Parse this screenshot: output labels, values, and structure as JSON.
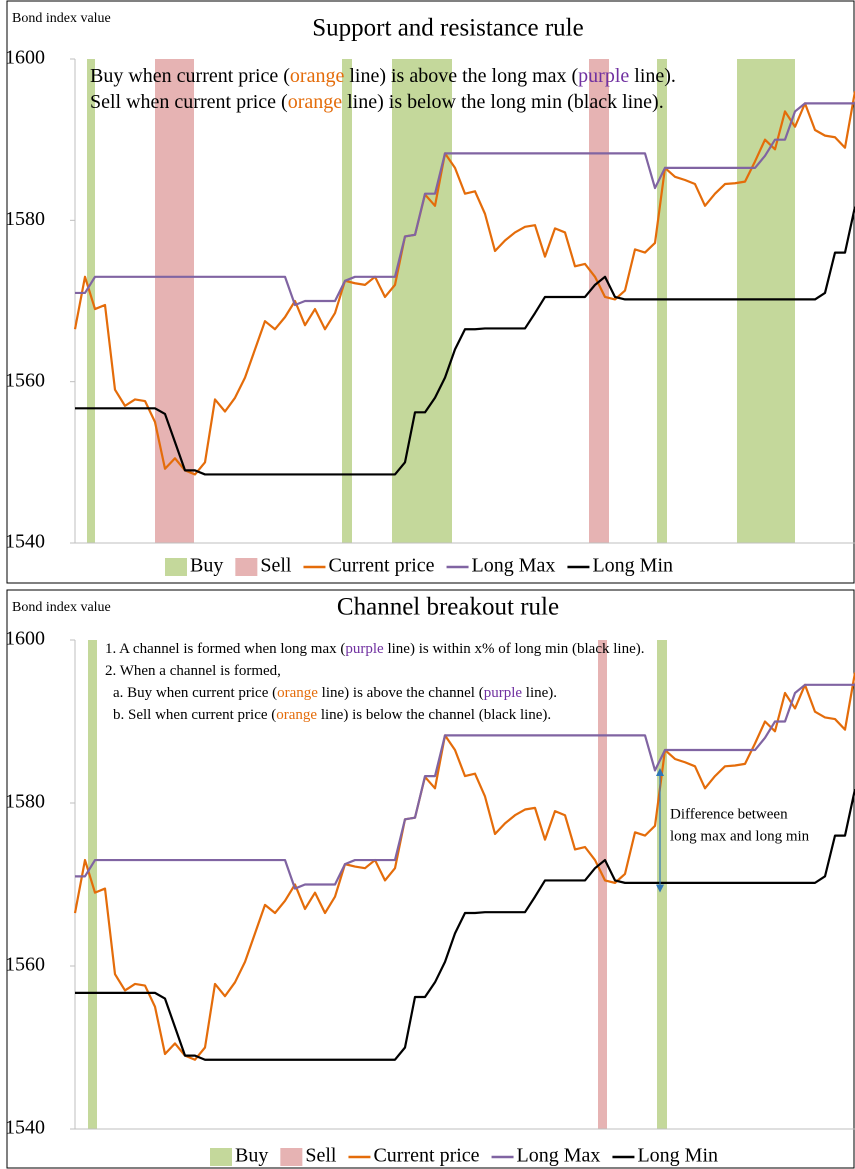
{
  "chart_data": [
    {
      "type": "line",
      "title": "Support and resistance rule",
      "y_label": "Bond index value",
      "annotation": [
        [
          {
            "text": "Buy when current price ("
          },
          {
            "text": "orange",
            "color": "#e46c0a"
          },
          {
            "text": " line) is above the long max ("
          },
          {
            "text": "purple",
            "color": "#7030a0"
          },
          {
            "text": " line)."
          }
        ],
        [
          {
            "text": "Sell when current price ("
          },
          {
            "text": "orange",
            "color": "#e46c0a"
          },
          {
            "text": " line) is below the long min (black line)."
          }
        ]
      ],
      "ylim": [
        1540,
        1600
      ],
      "yticks": [
        1540,
        1560,
        1580,
        1600
      ],
      "series": [
        {
          "name": "Buy",
          "type": "span",
          "color": "#c4d89b",
          "spans": [
            [
              1.2,
              2.0
            ],
            [
              26.7,
              27.7
            ],
            [
              31.7,
              37.7
            ],
            [
              58.2,
              59.2
            ],
            [
              66.2,
              72
            ]
          ]
        },
        {
          "name": "Sell",
          "type": "span",
          "color": "#e6b3b3",
          "spans": [
            [
              8,
              11.9
            ],
            [
              51.4,
              53.4
            ]
          ]
        },
        {
          "name": "Current price",
          "color": "#e46c0a",
          "values": [
            1566.5,
            1573,
            1569,
            1569.5,
            1559,
            1557,
            1557.8,
            1557.6,
            1555,
            1549.2,
            1550.5,
            1549,
            1548.5,
            1550,
            1557.8,
            1556.3,
            1558,
            1560.5,
            1564,
            1567.5,
            1566.5,
            1568,
            1570,
            1567,
            1569,
            1566.5,
            1568.5,
            1572.5,
            1572.2,
            1572,
            1573,
            1570.5,
            1572,
            1578,
            1578.2,
            1583.2,
            1581.8,
            1588.3,
            1586.5,
            1583.3,
            1583.6,
            1580.8,
            1576.2,
            1577.5,
            1578.5,
            1579.2,
            1579.4,
            1575.5,
            1579,
            1578.5,
            1574.3,
            1574.6,
            1573,
            1570.5,
            1570.2,
            1571.3,
            1576.4,
            1576,
            1577.2,
            1586.5,
            1585.4,
            1585,
            1584.5,
            1581.8,
            1583.3,
            1584.5,
            1584.6,
            1584.8,
            1587.3,
            1590,
            1588.8,
            1593.5,
            1591.6,
            1594.5,
            1591.2,
            1590.5,
            1590.3,
            1589,
            1596
          ]
        },
        {
          "name": "Long Max",
          "color": "#8064a2",
          "values": [
            1571,
            1571,
            1573,
            1573,
            1573,
            1573,
            1573,
            1573,
            1573,
            1573,
            1573,
            1573,
            1573,
            1573,
            1573,
            1573,
            1573,
            1573,
            1573,
            1573,
            1573,
            1573,
            1569.5,
            1570,
            1570,
            1570,
            1570,
            1572.5,
            1573,
            1573,
            1573,
            1573,
            1573,
            1578,
            1578.2,
            1583.3,
            1583.3,
            1588.3,
            1588.3,
            1588.3,
            1588.3,
            1588.3,
            1588.3,
            1588.3,
            1588.3,
            1588.3,
            1588.3,
            1588.3,
            1588.3,
            1588.3,
            1588.3,
            1588.3,
            1588.3,
            1588.3,
            1588.3,
            1588.3,
            1588.3,
            1588.3,
            1584,
            1586.5,
            1586.5,
            1586.5,
            1586.5,
            1586.5,
            1586.5,
            1586.5,
            1586.5,
            1586.5,
            1586.5,
            1588,
            1590,
            1590,
            1593.5,
            1594.5,
            1594.5,
            1594.5,
            1594.5,
            1594.5,
            1594.5
          ]
        },
        {
          "name": "Long Min",
          "color": "#000000",
          "values": [
            1556.7,
            1556.7,
            1556.7,
            1556.7,
            1556.7,
            1556.7,
            1556.7,
            1556.7,
            1556.7,
            1556,
            1552.5,
            1549,
            1549,
            1548.5,
            1548.5,
            1548.5,
            1548.5,
            1548.5,
            1548.5,
            1548.5,
            1548.5,
            1548.5,
            1548.5,
            1548.5,
            1548.5,
            1548.5,
            1548.5,
            1548.5,
            1548.5,
            1548.5,
            1548.5,
            1548.5,
            1548.5,
            1550,
            1556.2,
            1556.2,
            1558,
            1560.5,
            1564,
            1566.5,
            1566.5,
            1566.6,
            1566.6,
            1566.6,
            1566.6,
            1566.6,
            1568.5,
            1570.5,
            1570.5,
            1570.5,
            1570.5,
            1570.5,
            1572,
            1573,
            1570.5,
            1570.2,
            1570.2,
            1570.2,
            1570.2,
            1570.2,
            1570.2,
            1570.2,
            1570.2,
            1570.2,
            1570.2,
            1570.2,
            1570.2,
            1570.2,
            1570.2,
            1570.2,
            1570.2,
            1570.2,
            1570.2,
            1570.2,
            1570.2,
            1571,
            1576,
            1576,
            1581.7
          ]
        }
      ]
    },
    {
      "type": "line",
      "title": "Channel breakout rule",
      "y_label": "Bond index value",
      "annotation": [
        [
          {
            "text": "1. A channel is formed when long max ("
          },
          {
            "text": "purple",
            "color": "#7030a0"
          },
          {
            "text": " line) is within x% of long min (black line)."
          }
        ],
        [
          {
            "text": "2. When a channel is formed,"
          }
        ],
        [
          {
            "text": "a. Buy when current price ("
          },
          {
            "text": "orange",
            "color": "#e46c0a"
          },
          {
            "text": " line) is above the channel ("
          },
          {
            "text": "purple",
            "color": "#7030a0"
          },
          {
            "text": " line)."
          }
        ],
        [
          {
            "text": "b. Sell when current price ("
          },
          {
            "text": "orange",
            "color": "#e46c0a"
          },
          {
            "text": " line) is below the channel (black line)."
          }
        ]
      ],
      "note": [
        "Difference between",
        "long max and long min"
      ],
      "ylim": [
        1540,
        1600
      ],
      "yticks": [
        1540,
        1560,
        1580,
        1600
      ],
      "series": [
        {
          "name": "Buy",
          "type": "span",
          "color": "#c4d89b",
          "spans": [
            [
              1.3,
              2.2
            ],
            [
              58.2,
              59.2
            ]
          ]
        },
        {
          "name": "Sell",
          "type": "span",
          "color": "#e6b3b3",
          "spans": [
            [
              52.3,
              53.2
            ]
          ]
        },
        {
          "name": "Current price",
          "color": "#e46c0a",
          "values": [
            1566.5,
            1573,
            1569,
            1569.5,
            1559,
            1557,
            1557.8,
            1557.6,
            1555,
            1549.2,
            1550.5,
            1549,
            1548.5,
            1550,
            1557.8,
            1556.3,
            1558,
            1560.5,
            1564,
            1567.5,
            1566.5,
            1568,
            1570,
            1567,
            1569,
            1566.5,
            1568.5,
            1572.5,
            1572.2,
            1572,
            1573,
            1570.5,
            1572,
            1578,
            1578.2,
            1583.2,
            1581.8,
            1588.3,
            1586.5,
            1583.3,
            1583.6,
            1580.8,
            1576.2,
            1577.5,
            1578.5,
            1579.2,
            1579.4,
            1575.5,
            1579,
            1578.5,
            1574.3,
            1574.6,
            1573,
            1570.5,
            1570.2,
            1571.3,
            1576.4,
            1576,
            1577.2,
            1586.5,
            1585.4,
            1585,
            1584.5,
            1581.8,
            1583.3,
            1584.5,
            1584.6,
            1584.8,
            1587.3,
            1590,
            1588.8,
            1593.5,
            1591.6,
            1594.5,
            1591.2,
            1590.5,
            1590.3,
            1589,
            1596
          ]
        },
        {
          "name": "Long Max",
          "color": "#8064a2",
          "values": [
            1571,
            1571,
            1573,
            1573,
            1573,
            1573,
            1573,
            1573,
            1573,
            1573,
            1573,
            1573,
            1573,
            1573,
            1573,
            1573,
            1573,
            1573,
            1573,
            1573,
            1573,
            1573,
            1569.5,
            1570,
            1570,
            1570,
            1570,
            1572.5,
            1573,
            1573,
            1573,
            1573,
            1573,
            1578,
            1578.2,
            1583.3,
            1583.3,
            1588.3,
            1588.3,
            1588.3,
            1588.3,
            1588.3,
            1588.3,
            1588.3,
            1588.3,
            1588.3,
            1588.3,
            1588.3,
            1588.3,
            1588.3,
            1588.3,
            1588.3,
            1588.3,
            1588.3,
            1588.3,
            1588.3,
            1588.3,
            1588.3,
            1584,
            1586.5,
            1586.5,
            1586.5,
            1586.5,
            1586.5,
            1586.5,
            1586.5,
            1586.5,
            1586.5,
            1586.5,
            1588,
            1590,
            1590,
            1593.5,
            1594.5,
            1594.5,
            1594.5,
            1594.5,
            1594.5,
            1594.5
          ]
        },
        {
          "name": "Long Min",
          "color": "#000000",
          "values": [
            1556.7,
            1556.7,
            1556.7,
            1556.7,
            1556.7,
            1556.7,
            1556.7,
            1556.7,
            1556.7,
            1556,
            1552.5,
            1549,
            1549,
            1548.5,
            1548.5,
            1548.5,
            1548.5,
            1548.5,
            1548.5,
            1548.5,
            1548.5,
            1548.5,
            1548.5,
            1548.5,
            1548.5,
            1548.5,
            1548.5,
            1548.5,
            1548.5,
            1548.5,
            1548.5,
            1548.5,
            1548.5,
            1550,
            1556.2,
            1556.2,
            1558,
            1560.5,
            1564,
            1566.5,
            1566.5,
            1566.6,
            1566.6,
            1566.6,
            1566.6,
            1566.6,
            1568.5,
            1570.5,
            1570.5,
            1570.5,
            1570.5,
            1570.5,
            1572,
            1573,
            1570.5,
            1570.2,
            1570.2,
            1570.2,
            1570.2,
            1570.2,
            1570.2,
            1570.2,
            1570.2,
            1570.2,
            1570.2,
            1570.2,
            1570.2,
            1570.2,
            1570.2,
            1570.2,
            1570.2,
            1570.2,
            1570.2,
            1570.2,
            1570.2,
            1571,
            1576,
            1576,
            1581.7
          ]
        }
      ]
    }
  ]
}
